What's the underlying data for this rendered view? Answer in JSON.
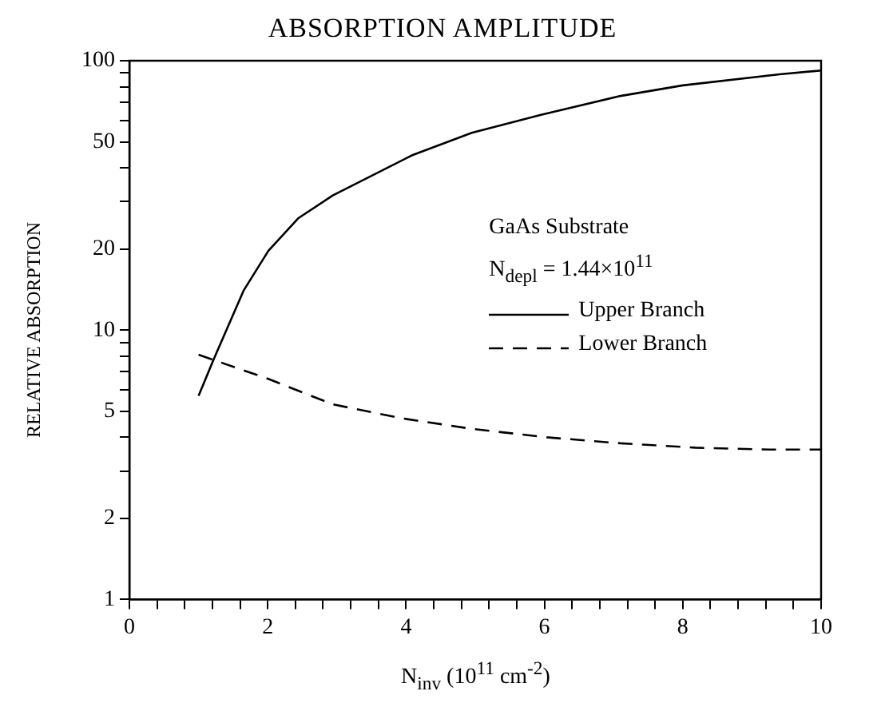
{
  "chart_data": {
    "type": "line",
    "title": "ABSORPTION AMPLITUDE",
    "xlabel": "N$_{inv}$ (10$^{11}$ cm$^{-2}$)",
    "ylabel": "RELATIVE ABSORPTION",
    "legend_title": "GaAs Substrate",
    "annotations": [
      "N$_{depl}$ = 1.44×10$^{11}$"
    ],
    "log": "y",
    "legend": "right",
    "grid": false,
    "marker": "none",
    "xlim": [
      0,
      10
    ],
    "xticks": [
      0,
      {
        "value": 0.4,
        "label": null
      },
      {
        "value": 0.8,
        "label": null
      },
      {
        "value": 1.2,
        "label": null
      },
      {
        "value": 1.6,
        "label": null
      },
      2,
      {
        "value": 2.4,
        "label": null
      },
      {
        "value": 2.8,
        "label": null
      },
      {
        "value": 3.2,
        "label": null
      },
      {
        "value": 3.6,
        "label": null
      },
      4,
      {
        "value": 4.4,
        "label": null
      },
      {
        "value": 4.8,
        "label": null
      },
      {
        "value": 5.2,
        "label": null
      },
      {
        "value": 5.6,
        "label": null
      },
      6,
      {
        "value": 6.4,
        "label": null
      },
      {
        "value": 6.8,
        "label": null
      },
      {
        "value": 7.2,
        "label": null
      },
      {
        "value": 7.6,
        "label": null
      },
      8,
      {
        "value": 8.4,
        "label": null
      },
      {
        "value": 8.8,
        "label": null
      },
      {
        "value": 9.2,
        "label": null
      },
      {
        "value": 9.6,
        "label": null
      },
      10
    ],
    "ylim": [
      1,
      100
    ],
    "yticks": [
      1,
      2,
      {
        "value": 3,
        "label": null
      },
      {
        "value": 4,
        "label": null
      },
      5,
      {
        "value": 6,
        "label": null
      },
      {
        "value": 7,
        "label": null
      },
      {
        "value": 8,
        "label": null
      },
      {
        "value": 9,
        "label": null
      },
      10,
      20,
      {
        "value": 30,
        "label": null
      },
      {
        "value": 40,
        "label": null
      },
      50,
      {
        "value": 60,
        "label": null
      },
      {
        "value": 70,
        "label": null
      },
      {
        "value": 80,
        "label": null
      },
      {
        "value": 90,
        "label": null
      },
      100
    ],
    "series": [
      {
        "name": "Upper Branch",
        "color": "#000000",
        "line_style": "solid",
        "x": [
          1.0,
          1.22,
          1.65,
          2.01,
          2.44,
          2.94,
          4.09,
          4.95,
          5.95,
          7.1,
          8.0,
          9.4,
          10.0
        ],
        "values": [
          5.7,
          7.8,
          14,
          19.7,
          26,
          31.6,
          44.6,
          54,
          63,
          74,
          81,
          89,
          92
        ]
      },
      {
        "name": "Lower Branch",
        "color": "#000000",
        "line_style": "dashed",
        "x": [
          1.0,
          2.0,
          2.94,
          3.95,
          4.95,
          6.03,
          7.1,
          8.18,
          9.25,
          10.0
        ],
        "values": [
          8.1,
          6.6,
          5.3,
          4.7,
          4.3,
          4.0,
          3.8,
          3.66,
          3.6,
          3.6
        ]
      }
    ]
  }
}
